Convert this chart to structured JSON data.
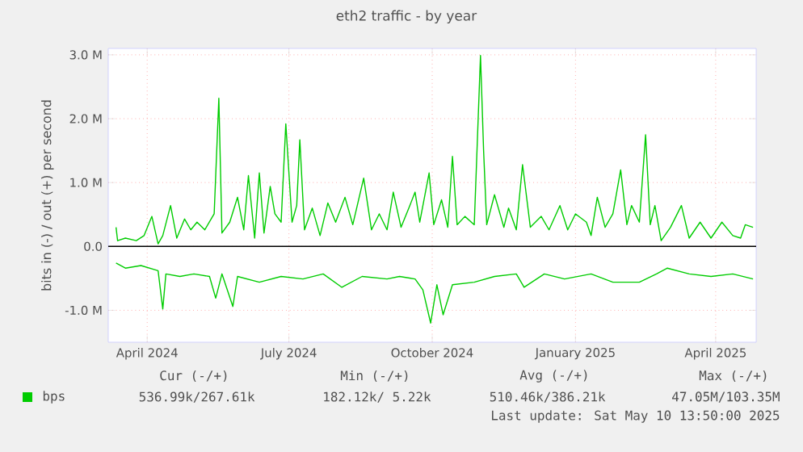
{
  "chart_data": {
    "type": "line",
    "title": "eth2 traffic - by year",
    "ylabel": "bits in (-) / out (+) per second",
    "xlim": [
      "2024-03-07",
      "2025-04-27"
    ],
    "xticks": [
      {
        "value": "2024-04-01",
        "label": "April 2024"
      },
      {
        "value": "2024-07-01",
        "label": "July 2024"
      },
      {
        "value": "2024-10-01",
        "label": "October 2024"
      },
      {
        "value": "2025-01-01",
        "label": "January 2025"
      },
      {
        "value": "2025-04-01",
        "label": "April 2025"
      }
    ],
    "ylim": [
      -1.5,
      3.1
    ],
    "yticks": [
      {
        "value": -1,
        "label": "-1.0 M"
      },
      {
        "value": 0,
        "label": "0.0"
      },
      {
        "value": 1,
        "label": "1.0 M"
      },
      {
        "value": 2,
        "label": "2.0 M"
      },
      {
        "value": 3,
        "label": "3.0 M"
      }
    ],
    "grid": true,
    "legend": "bottom",
    "marker": "none",
    "line_style": "solid",
    "ref_lines": [
      {
        "axis": "y",
        "value": 0,
        "color": "#000000"
      }
    ],
    "series": [
      {
        "name": "bps",
        "color": "#00cc00",
        "x": [
          "2024-03-12",
          "2024-03-13",
          "2024-03-18",
          "2024-03-25",
          "2024-03-30",
          "2024-04-04",
          "2024-04-08",
          "2024-04-11",
          "2024-04-16",
          "2024-04-20",
          "2024-04-25",
          "2024-04-29",
          "2024-05-03",
          "2024-05-08",
          "2024-05-14",
          "2024-05-17",
          "2024-05-19",
          "2024-05-24",
          "2024-05-29",
          "2024-06-02",
          "2024-06-05",
          "2024-06-09",
          "2024-06-12",
          "2024-06-15",
          "2024-06-19",
          "2024-06-22",
          "2024-06-26",
          "2024-06-29",
          "2024-07-03",
          "2024-07-06",
          "2024-07-08",
          "2024-07-11",
          "2024-07-16",
          "2024-07-21",
          "2024-07-26",
          "2024-07-31",
          "2024-08-06",
          "2024-08-11",
          "2024-08-18",
          "2024-08-23",
          "2024-08-28",
          "2024-09-02",
          "2024-09-06",
          "2024-09-11",
          "2024-09-16",
          "2024-09-20",
          "2024-09-23",
          "2024-09-29",
          "2024-10-02",
          "2024-10-07",
          "2024-10-11",
          "2024-10-14",
          "2024-10-17",
          "2024-10-22",
          "2024-10-28",
          "2024-11-01",
          "2024-11-03",
          "2024-11-05",
          "2024-11-10",
          "2024-11-16",
          "2024-11-19",
          "2024-11-24",
          "2024-11-28",
          "2024-12-03",
          "2024-12-10",
          "2024-12-15",
          "2024-12-22",
          "2024-12-27",
          "2025-01-01",
          "2025-01-08",
          "2025-01-11",
          "2025-01-15",
          "2025-01-20",
          "2025-01-25",
          "2025-01-30",
          "2025-02-03",
          "2025-02-06",
          "2025-02-11",
          "2025-02-15",
          "2025-02-18",
          "2025-02-21",
          "2025-02-25",
          "2025-03-03",
          "2025-03-10",
          "2025-03-15",
          "2025-03-22",
          "2025-03-29",
          "2025-04-05",
          "2025-04-12",
          "2025-04-17",
          "2025-04-20",
          "2025-04-25"
        ],
        "values": [
          0.3,
          0.09,
          0.13,
          0.09,
          0.17,
          0.47,
          0.04,
          0.17,
          0.64,
          0.13,
          0.43,
          0.26,
          0.38,
          0.26,
          0.51,
          2.32,
          0.21,
          0.38,
          0.77,
          0.26,
          1.11,
          0.13,
          1.15,
          0.21,
          0.94,
          0.51,
          0.38,
          1.92,
          0.38,
          0.64,
          1.67,
          0.26,
          0.6,
          0.17,
          0.68,
          0.38,
          0.77,
          0.34,
          1.07,
          0.26,
          0.51,
          0.26,
          0.85,
          0.3,
          0.6,
          0.85,
          0.38,
          1.15,
          0.34,
          0.73,
          0.3,
          1.41,
          0.34,
          0.47,
          0.34,
          2.99,
          1.5,
          0.34,
          0.81,
          0.3,
          0.6,
          0.26,
          1.28,
          0.3,
          0.47,
          0.26,
          0.64,
          0.26,
          0.51,
          0.38,
          0.17,
          0.77,
          0.3,
          0.51,
          1.2,
          0.34,
          0.64,
          0.38,
          1.75,
          0.34,
          0.64,
          0.09,
          0.3,
          0.64,
          0.13,
          0.38,
          0.13,
          0.38,
          0.17,
          0.13,
          0.34,
          0.3
        ]
      },
      {
        "color": "#00cc00",
        "x": [
          "2024-03-12",
          "2024-03-18",
          "2024-03-28",
          "2024-04-08",
          "2024-04-11",
          "2024-04-13",
          "2024-04-22",
          "2024-05-01",
          "2024-05-11",
          "2024-05-15",
          "2024-05-19",
          "2024-05-26",
          "2024-05-29",
          "2024-06-12",
          "2024-06-26",
          "2024-07-10",
          "2024-07-23",
          "2024-08-04",
          "2024-08-17",
          "2024-09-02",
          "2024-09-10",
          "2024-09-20",
          "2024-09-25",
          "2024-09-30",
          "2024-10-04",
          "2024-10-08",
          "2024-10-14",
          "2024-10-28",
          "2024-11-10",
          "2024-11-24",
          "2024-11-29",
          "2024-12-12",
          "2024-12-25",
          "2025-01-11",
          "2025-01-25",
          "2025-02-11",
          "2025-02-22",
          "2025-03-01",
          "2025-03-15",
          "2025-03-29",
          "2025-04-12",
          "2025-04-25"
        ],
        "values": [
          -0.26,
          -0.34,
          -0.3,
          -0.38,
          -0.98,
          -0.43,
          -0.47,
          -0.43,
          -0.47,
          -0.81,
          -0.43,
          -0.94,
          -0.47,
          -0.56,
          -0.47,
          -0.51,
          -0.43,
          -0.64,
          -0.47,
          -0.51,
          -0.47,
          -0.51,
          -0.68,
          -1.2,
          -0.6,
          -1.07,
          -0.6,
          -0.56,
          -0.47,
          -0.43,
          -0.64,
          -0.43,
          -0.51,
          -0.43,
          -0.56,
          -0.56,
          -0.43,
          -0.34,
          -0.43,
          -0.47,
          -0.43,
          -0.51
        ]
      }
    ],
    "annotations": [
      "Cur (-/+)",
      "Min (-/+)",
      "Avg (-/+)",
      "Max (-/+)",
      "536.99k/267.61k",
      "182.12k/   5.22k",
      "510.46k/386.21k",
      "47.05M/103.35M",
      "Last update: Sat May 10 13:50:00 2025"
    ]
  }
}
